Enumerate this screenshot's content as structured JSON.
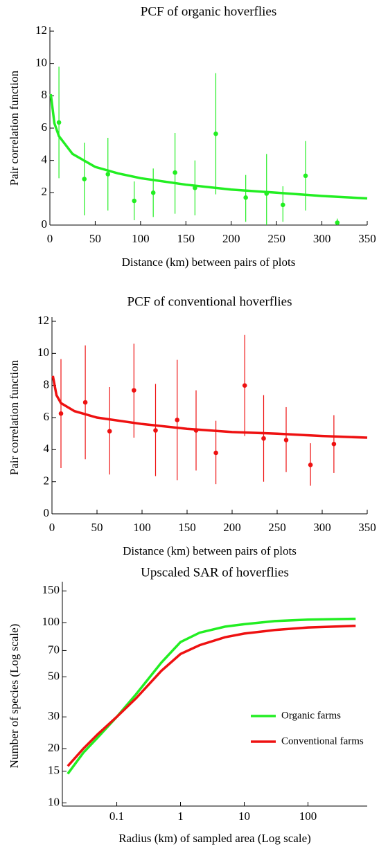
{
  "chart_data": [
    {
      "type": "scatter",
      "title": "PCF of organic hoverflies",
      "x_label": "Distance (km) between pairs of plots",
      "y_label": "Pair correlation function",
      "color": "#22ee22",
      "x": [
        10,
        38,
        64,
        93,
        114,
        138,
        160,
        183,
        216,
        239,
        257,
        282,
        317
      ],
      "values": [
        6.35,
        2.85,
        3.15,
        1.5,
        2.0,
        3.25,
        2.3,
        5.65,
        1.7,
        1.95,
        1.25,
        3.05,
        0.15
      ],
      "error_low": [
        2.9,
        0.6,
        0.9,
        0.3,
        0.5,
        0.7,
        0.6,
        1.9,
        0.2,
        0,
        0.2,
        0.9,
        0
      ],
      "error_high": [
        9.8,
        5.1,
        5.4,
        2.7,
        3.5,
        5.7,
        4.0,
        9.4,
        3.1,
        4.4,
        2.4,
        5.2,
        0.4
      ],
      "fit": {
        "x": [
          1,
          5,
          10,
          25,
          50,
          75,
          100,
          150,
          200,
          250,
          300,
          350
        ],
        "values": [
          8.1,
          6.3,
          5.5,
          4.4,
          3.6,
          3.2,
          2.9,
          2.5,
          2.2,
          2.0,
          1.8,
          1.65
        ]
      },
      "xlim": [
        0,
        350
      ],
      "xticks": [
        0,
        50,
        100,
        150,
        200,
        250,
        300,
        350
      ],
      "ylim": [
        0,
        12
      ],
      "yticks": [
        0,
        2,
        4,
        6,
        8,
        10,
        12
      ]
    },
    {
      "type": "scatter",
      "title": "PCF of conventional hoverflies",
      "x_label": "Distance (km) between pairs of plots",
      "y_label": "Pair correlation function",
      "color": "#ee1111",
      "x": [
        10,
        37,
        64,
        91,
        115,
        139,
        160,
        182,
        214,
        235,
        260,
        287,
        313
      ],
      "values": [
        6.25,
        6.95,
        5.15,
        7.7,
        5.2,
        5.85,
        5.2,
        3.8,
        8.0,
        4.7,
        4.6,
        3.05,
        4.35
      ],
      "error_low": [
        2.85,
        3.4,
        2.45,
        4.75,
        2.35,
        2.1,
        2.7,
        1.85,
        4.85,
        2.0,
        2.6,
        1.75,
        2.55
      ],
      "error_high": [
        9.65,
        10.5,
        7.9,
        10.6,
        8.1,
        9.6,
        7.7,
        5.8,
        11.15,
        7.4,
        6.65,
        4.4,
        6.15
      ],
      "fit": {
        "x": [
          1,
          5,
          10,
          25,
          50,
          100,
          150,
          200,
          250,
          300,
          350
        ],
        "values": [
          8.6,
          7.4,
          6.9,
          6.4,
          6.0,
          5.6,
          5.3,
          5.1,
          5.0,
          4.85,
          4.75
        ]
      },
      "xlim": [
        0,
        350
      ],
      "xticks": [
        0,
        50,
        100,
        150,
        200,
        250,
        300,
        350
      ],
      "ylim": [
        0,
        12
      ],
      "yticks": [
        0,
        2,
        4,
        6,
        8,
        10,
        12
      ]
    },
    {
      "type": "line",
      "title": "Upscaled SAR of hoverflies",
      "x_label": "Radius (km) of sampled area (Log scale)",
      "y_label": "Number of species (Log scale)",
      "x": [
        0.017,
        0.03,
        0.05,
        0.1,
        0.2,
        0.5,
        1,
        2,
        5,
        10,
        30,
        100,
        560
      ],
      "series": [
        {
          "name": "Organic farms",
          "color": "#22ee22",
          "values": [
            14.5,
            19,
            23,
            30,
            40,
            60,
            78,
            88,
            95,
            98,
            102,
            104,
            105
          ]
        },
        {
          "name": "Conventional farms",
          "color": "#ee1111",
          "values": [
            16,
            20,
            24,
            30,
            38,
            54,
            67,
            75,
            83,
            87,
            91,
            94,
            96
          ]
        }
      ],
      "xlog": true,
      "ylog": true,
      "legend": "lower right",
      "xlim": [
        0.014,
        850
      ],
      "xticks": [
        0.1,
        1,
        10,
        100
      ],
      "ylim": [
        9.6,
        160
      ],
      "yticks": [
        10,
        15,
        20,
        30,
        50,
        70,
        100,
        150
      ]
    }
  ]
}
